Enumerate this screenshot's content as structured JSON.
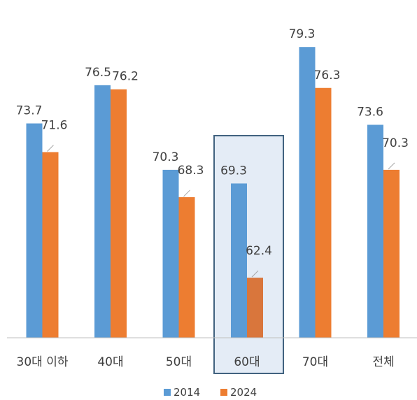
{
  "chart_data": {
    "type": "bar",
    "title": "",
    "xlabel": "",
    "ylabel": "",
    "categories": [
      "30대 이하",
      "40대",
      "50대",
      "60대",
      "70대",
      "전체"
    ],
    "series": [
      {
        "name": "2014",
        "color": "#5B9BD5",
        "values": [
          73.7,
          76.5,
          70.3,
          69.3,
          79.3,
          73.6
        ]
      },
      {
        "name": "2024",
        "color": "#ED7D31",
        "values": [
          71.6,
          76.2,
          68.3,
          62.4,
          76.3,
          70.3
        ]
      }
    ],
    "ylim": [
      58,
      81
    ],
    "grid": false,
    "legend_position": "bottom",
    "highlighted_category": "60대",
    "highlight_colors": {
      "fill": "#E4ECF6",
      "border": "#41627F",
      "highlighted_2024": "#D9763C"
    }
  }
}
